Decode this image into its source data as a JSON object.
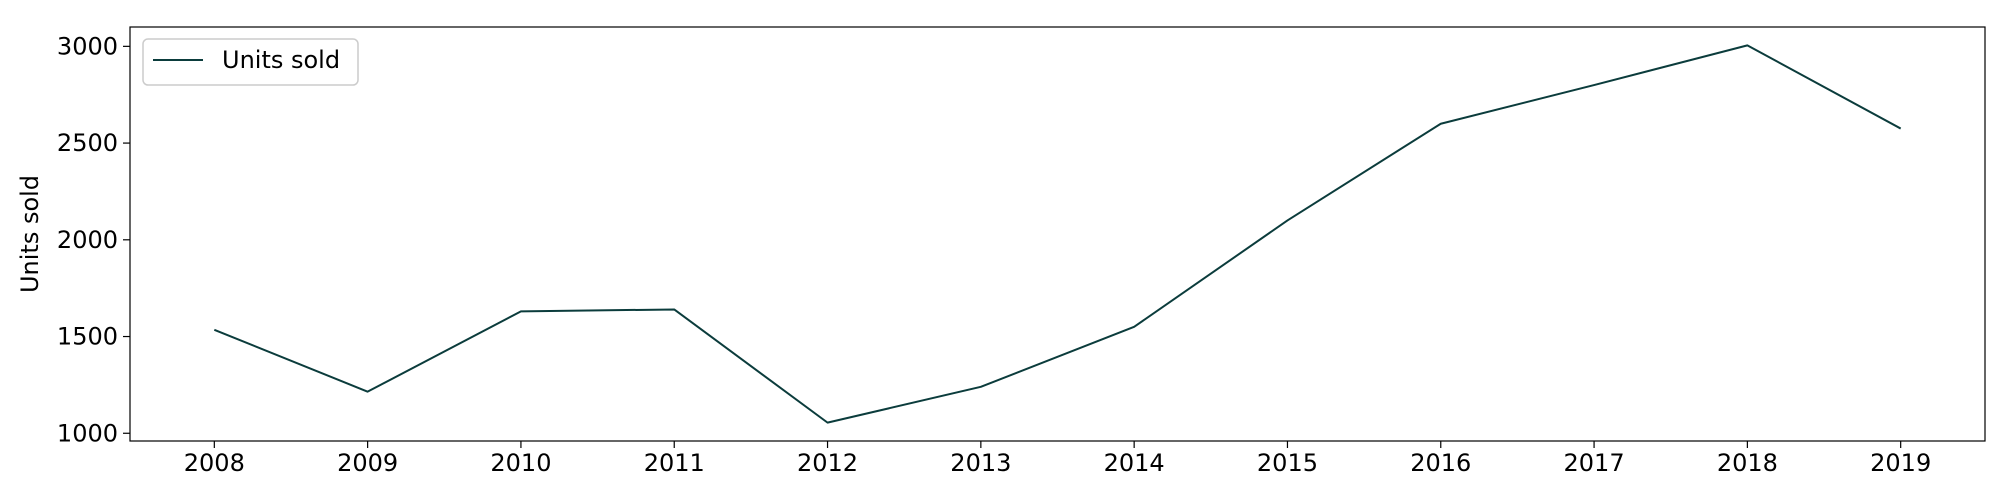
{
  "chart_data": {
    "type": "line",
    "title": "",
    "xlabel": "",
    "ylabel": "Units sold",
    "x": [
      2008,
      2009,
      2010,
      2011,
      2012,
      2013,
      2014,
      2015,
      2016,
      2017,
      2018,
      2019
    ],
    "series": [
      {
        "name": "Units sold",
        "color": "#0b3c3c",
        "values": [
          1535,
          1215,
          1630,
          1640,
          1055,
          1240,
          1550,
          2100,
          2600,
          2800,
          3005,
          2575
        ]
      }
    ],
    "xlim": [
      2007.45,
      2019.55
    ],
    "ylim": [
      960,
      3100
    ],
    "yticks": [
      1000,
      1500,
      2000,
      2500,
      3000
    ],
    "grid": false,
    "legend_position": "top-left"
  }
}
